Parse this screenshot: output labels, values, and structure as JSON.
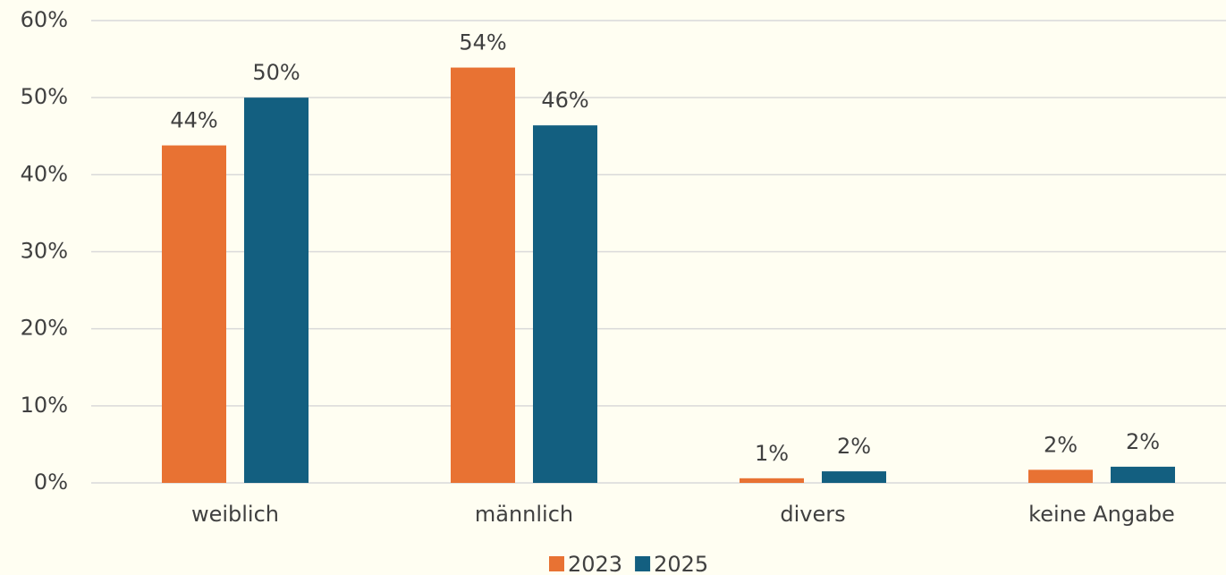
{
  "chart_data": {
    "type": "bar",
    "categories": [
      "weiblich",
      "männlich",
      "divers",
      "keine Angabe"
    ],
    "series": [
      {
        "name": "2023",
        "color": "#e87233",
        "values": [
          43.8,
          53.9,
          0.6,
          1.7
        ],
        "value_labels": [
          "44%",
          "54%",
          "1%",
          "2%"
        ]
      },
      {
        "name": "2025",
        "color": "#135f80",
        "values": [
          50,
          46.4,
          1.5,
          2.1
        ],
        "value_labels": [
          "50%",
          "46%",
          "2%",
          "2%"
        ]
      }
    ],
    "ylim": [
      0,
      60
    ],
    "yticks": [
      {
        "value": 0,
        "label": "0%"
      },
      {
        "value": 10,
        "label": "10%"
      },
      {
        "value": 20,
        "label": "20%"
      },
      {
        "value": 30,
        "label": "30%"
      },
      {
        "value": 40,
        "label": "40%"
      },
      {
        "value": 50,
        "label": "50%"
      },
      {
        "value": 60,
        "label": "60%"
      }
    ],
    "grid": true,
    "legend": "bottom"
  }
}
